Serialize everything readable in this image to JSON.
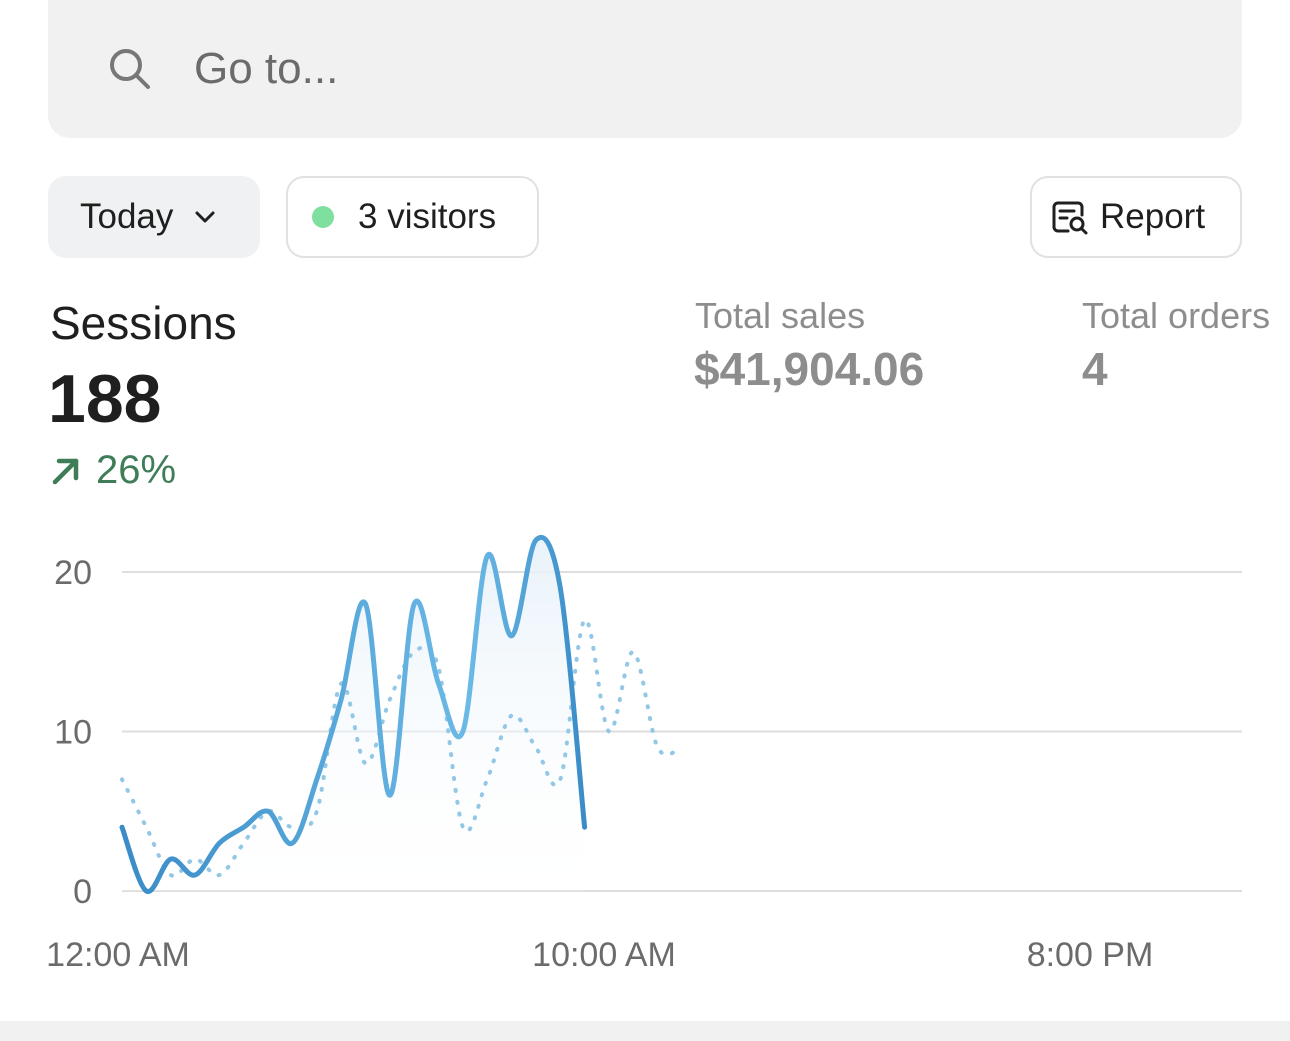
{
  "search": {
    "placeholder": "Go to..."
  },
  "filters": {
    "date_label": "Today",
    "visitors_label": "3 visitors",
    "report_label": "Report"
  },
  "metrics": {
    "sessions": {
      "label": "Sessions",
      "value": "188",
      "change": "26%"
    },
    "total_sales": {
      "label": "Total sales",
      "value": "$41,904.06"
    },
    "total_orders": {
      "label": "Total orders",
      "value": "4"
    }
  },
  "colors": {
    "primary_line": "#3f93cf",
    "comparison_line": "#92c7e6",
    "positive": "#3e7d58",
    "live_dot": "#7fdf9e"
  },
  "chart_data": {
    "type": "line",
    "ylim": [
      0,
      20
    ],
    "y_ticks": [
      "0",
      "10",
      "20"
    ],
    "x_tick_labels": [
      "12:00 AM",
      "10:00 AM",
      "8:00 PM"
    ],
    "grid": true,
    "series": [
      {
        "x": [
          0,
          0.5,
          1,
          1.5,
          2,
          2.5,
          3,
          3.5,
          4,
          4.5,
          5,
          5.5,
          6,
          6.5,
          7,
          7.5,
          8,
          8.5,
          9,
          9.5,
          10,
          10.5,
          11,
          11.5,
          12,
          12.5,
          13,
          13.5,
          14,
          14.5,
          15,
          15.5,
          16,
          16.5,
          17,
          17.5,
          18,
          18.5,
          19,
          19.5
        ],
        "values": [
          4,
          0,
          2,
          1,
          3,
          4,
          5,
          3,
          7,
          12,
          18,
          6,
          18,
          13,
          10,
          21,
          16,
          22,
          19,
          4,
          null,
          null,
          null,
          null,
          null,
          null,
          null,
          null,
          null,
          null,
          null,
          null,
          null,
          null,
          null,
          null,
          null,
          null,
          null,
          null
        ]
      },
      {
        "x": [
          0,
          0.5,
          1,
          1.5,
          2,
          2.5,
          3,
          3.5,
          4,
          4.5,
          5,
          5.5,
          6,
          6.5,
          7,
          7.5,
          8,
          8.5,
          9,
          9.5,
          10,
          10.5,
          11,
          11.5,
          12,
          12.5,
          13,
          13.5,
          14,
          14.5,
          15,
          15.5,
          16,
          16.5,
          17,
          17.5,
          18,
          18.5,
          19,
          19.5,
          20,
          20.5,
          21,
          21.5,
          22,
          22.5,
          23
        ],
        "values": [
          7,
          4,
          1,
          2,
          1,
          3,
          5,
          4,
          5,
          13,
          8,
          12,
          15,
          14,
          4,
          7,
          11,
          9,
          7,
          17,
          10,
          15,
          9,
          9,
          null,
          null,
          null,
          null,
          null,
          null,
          null,
          null,
          null,
          null,
          null,
          null,
          null,
          null,
          null,
          null,
          null,
          null,
          null,
          null,
          null,
          null,
          null
        ]
      }
    ]
  }
}
